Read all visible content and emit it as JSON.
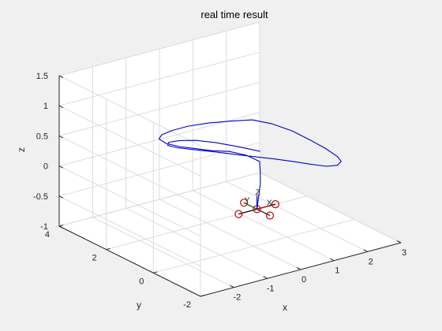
{
  "chart_data": {
    "type": "line3d",
    "title": "real time result",
    "xlabel": "x",
    "ylabel": "y",
    "zlabel": "z",
    "xlim": [
      -3,
      3
    ],
    "ylim": [
      -2,
      4
    ],
    "zlim": [
      -1,
      1.5
    ],
    "x_ticks": [
      "-2",
      "-1",
      "0",
      "1",
      "2",
      "3"
    ],
    "y_ticks": [
      "-2",
      "0",
      "2",
      "4"
    ],
    "z_ticks": [
      "-1",
      "-0.5",
      "0",
      "0.5",
      "1",
      "1.5"
    ],
    "grid": true,
    "view": {
      "azimuth": -37.5,
      "elevation": 30
    },
    "series": [
      {
        "style": "trajectory",
        "color": "#0000cc",
        "x": [
          0.1,
          0.15,
          0.2,
          0.2,
          0.25,
          0.0,
          -0.3,
          -0.6,
          -0.9,
          -1.2,
          -1.45,
          -1.6,
          -1.55,
          -1.35,
          -1.0,
          -0.6,
          -0.2,
          0.2,
          0.55,
          0.9,
          1.2,
          1.45,
          1.6,
          1.6,
          1.45,
          1.2,
          0.9,
          0.6,
          0.3,
          0.05,
          -0.3,
          -0.7,
          -1.1,
          -1.4,
          -1.55,
          -1.45,
          -1.2,
          -0.85,
          -0.45,
          -0.05,
          0.3
        ],
        "y": [
          0.0,
          0.0,
          0.0,
          0.0,
          0.1,
          0.3,
          0.6,
          0.9,
          1.2,
          1.45,
          1.65,
          1.75,
          1.7,
          1.55,
          1.35,
          1.05,
          0.7,
          0.35,
          0.0,
          -0.35,
          -0.7,
          -1.0,
          -1.3,
          -1.45,
          -1.5,
          -1.4,
          -1.15,
          -0.85,
          -0.5,
          -0.15,
          0.2,
          0.6,
          0.95,
          1.25,
          1.45,
          1.55,
          1.45,
          1.25,
          0.95,
          0.55,
          0.15
        ],
        "z": [
          -0.4,
          -0.2,
          0.0,
          0.2,
          0.35,
          0.45,
          0.5,
          0.5,
          0.52,
          0.55,
          0.6,
          0.68,
          0.75,
          0.82,
          0.88,
          0.93,
          0.97,
          1.0,
          0.95,
          0.85,
          0.72,
          0.6,
          0.5,
          0.45,
          0.42,
          0.42,
          0.45,
          0.48,
          0.5,
          0.5,
          0.52,
          0.55,
          0.58,
          0.6,
          0.62,
          0.64,
          0.65,
          0.64,
          0.6,
          0.55,
          0.5
        ]
      }
    ],
    "quadcopter": {
      "center": [
        0.1,
        0.0,
        -0.4
      ],
      "arm_length": 0.55,
      "rotor_color": "#cc0000",
      "arm_color": "#000000",
      "axis_labels": [
        "X",
        "Y",
        "Z"
      ]
    }
  }
}
